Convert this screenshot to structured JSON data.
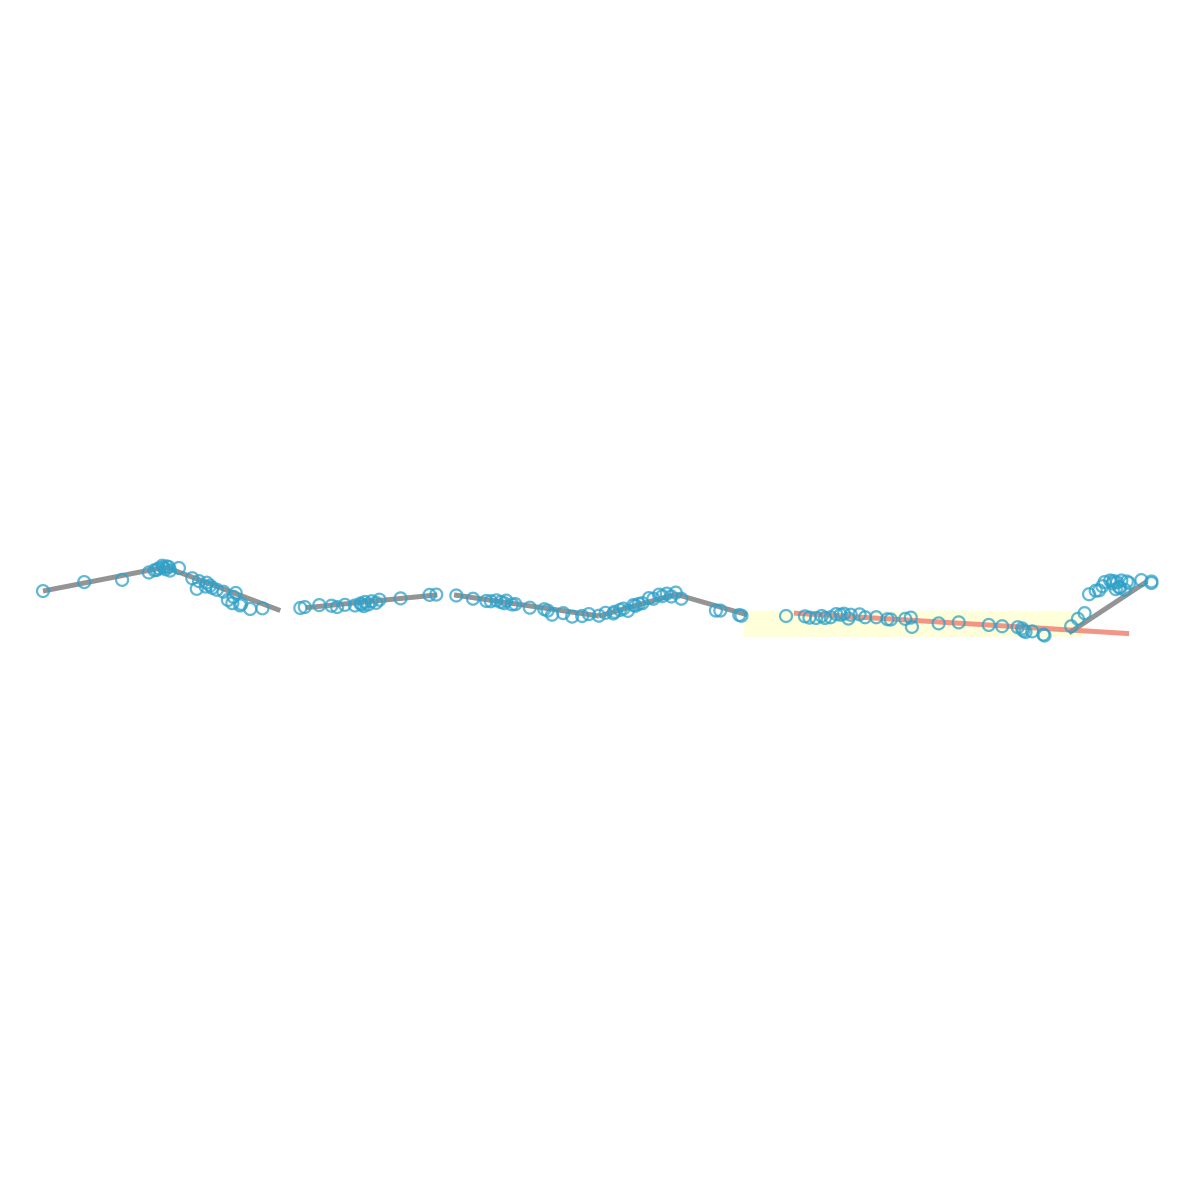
{
  "chart_data": {
    "type": "scatter",
    "title": "",
    "xlabel": "",
    "ylabel": "",
    "xlim": [
      0,
      100
    ],
    "ylim": [
      0,
      100
    ],
    "axes_visible": false,
    "grid": false,
    "legend": "none",
    "colors": {
      "points": "#2fa0c8",
      "fit_line": "#8e8e8e",
      "highlight_line": "#f08a7a",
      "highlight_region": "#ffffd0"
    },
    "highlight_region": {
      "x": [
        62.9,
        93.5
      ],
      "y": [
        38.5,
        46.6
      ]
    },
    "segments": [
      {
        "x": [
          0.0,
          11.0
        ],
        "y": [
          52.8,
          60.3
        ],
        "highlight": false
      },
      {
        "x": [
          11.0,
          21.3
        ],
        "y": [
          60.3,
          46.7
        ],
        "highlight": false
      },
      {
        "x": [
          23.6,
          35.4
        ],
        "y": [
          47.6,
          51.6
        ],
        "highlight": false
      },
      {
        "x": [
          36.9,
          49.9
        ],
        "y": [
          51.6,
          45.0
        ],
        "highlight": false
      },
      {
        "x": [
          49.9,
          56.8
        ],
        "y": [
          45.0,
          51.8
        ],
        "highlight": false
      },
      {
        "x": [
          56.8,
          63.2
        ],
        "y": [
          51.8,
          45.4
        ],
        "highlight": false
      },
      {
        "x": [
          67.4,
          97.5
        ],
        "y": [
          45.9,
          39.5
        ],
        "highlight": true
      },
      {
        "x": [
          92.1,
          99.1
        ],
        "y": [
          39.7,
          55.8
        ],
        "highlight": false
      }
    ],
    "points": [
      {
        "x": 0.0,
        "y": 52.8
      },
      {
        "x": 3.7,
        "y": 55.6
      },
      {
        "x": 7.1,
        "y": 56.3
      },
      {
        "x": 9.5,
        "y": 58.6
      },
      {
        "x": 10.0,
        "y": 59.3
      },
      {
        "x": 10.4,
        "y": 59.9
      },
      {
        "x": 10.8,
        "y": 60.2
      },
      {
        "x": 11.1,
        "y": 60.5
      },
      {
        "x": 11.3,
        "y": 60.3
      },
      {
        "x": 11.0,
        "y": 59.6
      },
      {
        "x": 11.4,
        "y": 59.2
      },
      {
        "x": 12.2,
        "y": 60.0
      },
      {
        "x": 10.7,
        "y": 60.7
      },
      {
        "x": 10.2,
        "y": 59.4
      },
      {
        "x": 13.4,
        "y": 56.8
      },
      {
        "x": 14.0,
        "y": 55.9
      },
      {
        "x": 14.7,
        "y": 55.4
      },
      {
        "x": 15.0,
        "y": 54.5
      },
      {
        "x": 14.6,
        "y": 54.2
      },
      {
        "x": 15.2,
        "y": 53.8
      },
      {
        "x": 13.8,
        "y": 53.5
      },
      {
        "x": 15.6,
        "y": 53.2
      },
      {
        "x": 16.2,
        "y": 52.6
      },
      {
        "x": 17.3,
        "y": 52.2
      },
      {
        "x": 17.1,
        "y": 51.0
      },
      {
        "x": 16.6,
        "y": 50.0
      },
      {
        "x": 17.0,
        "y": 49.0
      },
      {
        "x": 17.8,
        "y": 48.8
      },
      {
        "x": 18.6,
        "y": 47.2
      },
      {
        "x": 17.7,
        "y": 48.3
      },
      {
        "x": 19.7,
        "y": 47.4
      },
      {
        "x": 23.1,
        "y": 47.5
      },
      {
        "x": 23.5,
        "y": 47.8
      },
      {
        "x": 24.8,
        "y": 48.4
      },
      {
        "x": 25.9,
        "y": 48.2
      },
      {
        "x": 26.4,
        "y": 47.8
      },
      {
        "x": 27.1,
        "y": 48.5
      },
      {
        "x": 28.0,
        "y": 48.3
      },
      {
        "x": 28.6,
        "y": 48.6
      },
      {
        "x": 28.9,
        "y": 49.4
      },
      {
        "x": 29.5,
        "y": 49.6
      },
      {
        "x": 30.2,
        "y": 50.1
      },
      {
        "x": 29.9,
        "y": 49.1
      },
      {
        "x": 28.8,
        "y": 48.1
      },
      {
        "x": 28.5,
        "y": 48.9
      },
      {
        "x": 29.2,
        "y": 48.6
      },
      {
        "x": 32.1,
        "y": 50.5
      },
      {
        "x": 34.7,
        "y": 51.6
      },
      {
        "x": 35.3,
        "y": 51.7
      },
      {
        "x": 37.1,
        "y": 51.4
      },
      {
        "x": 38.6,
        "y": 50.4
      },
      {
        "x": 40.2,
        "y": 49.6
      },
      {
        "x": 40.7,
        "y": 49.9
      },
      {
        "x": 41.1,
        "y": 49.4
      },
      {
        "x": 41.6,
        "y": 49.8
      },
      {
        "x": 39.8,
        "y": 49.7
      },
      {
        "x": 42.1,
        "y": 48.6
      },
      {
        "x": 42.4,
        "y": 48.7
      },
      {
        "x": 41.4,
        "y": 49.0
      },
      {
        "x": 43.7,
        "y": 47.6
      },
      {
        "x": 45.0,
        "y": 47.1
      },
      {
        "x": 45.3,
        "y": 46.7
      },
      {
        "x": 45.7,
        "y": 45.4
      },
      {
        "x": 46.7,
        "y": 45.9
      },
      {
        "x": 47.5,
        "y": 44.8
      },
      {
        "x": 48.4,
        "y": 45.0
      },
      {
        "x": 49.0,
        "y": 45.6
      },
      {
        "x": 49.9,
        "y": 45.1
      },
      {
        "x": 50.5,
        "y": 46.0
      },
      {
        "x": 51.2,
        "y": 45.8
      },
      {
        "x": 51.3,
        "y": 46.3
      },
      {
        "x": 51.8,
        "y": 46.9
      },
      {
        "x": 52.1,
        "y": 47.3
      },
      {
        "x": 52.5,
        "y": 46.6
      },
      {
        "x": 53.0,
        "y": 48.4
      },
      {
        "x": 53.2,
        "y": 48.2
      },
      {
        "x": 53.5,
        "y": 48.8
      },
      {
        "x": 53.8,
        "y": 49.0
      },
      {
        "x": 54.4,
        "y": 50.6
      },
      {
        "x": 54.8,
        "y": 50.4
      },
      {
        "x": 55.3,
        "y": 51.7
      },
      {
        "x": 55.6,
        "y": 51.2
      },
      {
        "x": 56.0,
        "y": 52.0
      },
      {
        "x": 56.4,
        "y": 51.1
      },
      {
        "x": 56.8,
        "y": 52.3
      },
      {
        "x": 57.3,
        "y": 50.4
      },
      {
        "x": 60.4,
        "y": 46.7
      },
      {
        "x": 60.8,
        "y": 46.7
      },
      {
        "x": 62.5,
        "y": 45.3
      },
      {
        "x": 62.7,
        "y": 45.1
      },
      {
        "x": 66.7,
        "y": 45.0
      },
      {
        "x": 68.4,
        "y": 44.9
      },
      {
        "x": 68.8,
        "y": 44.5
      },
      {
        "x": 69.4,
        "y": 44.4
      },
      {
        "x": 69.9,
        "y": 45.0
      },
      {
        "x": 70.2,
        "y": 44.4
      },
      {
        "x": 70.7,
        "y": 44.6
      },
      {
        "x": 71.2,
        "y": 45.6
      },
      {
        "x": 71.6,
        "y": 45.4
      },
      {
        "x": 71.9,
        "y": 45.7
      },
      {
        "x": 72.3,
        "y": 44.2
      },
      {
        "x": 72.5,
        "y": 45.4
      },
      {
        "x": 73.3,
        "y": 45.5
      },
      {
        "x": 73.8,
        "y": 44.6
      },
      {
        "x": 74.8,
        "y": 44.6
      },
      {
        "x": 75.8,
        "y": 44.0
      },
      {
        "x": 76.1,
        "y": 43.9
      },
      {
        "x": 77.4,
        "y": 44.1
      },
      {
        "x": 77.9,
        "y": 44.5
      },
      {
        "x": 78.0,
        "y": 41.6
      },
      {
        "x": 80.4,
        "y": 42.7
      },
      {
        "x": 82.2,
        "y": 43.0
      },
      {
        "x": 84.9,
        "y": 42.2
      },
      {
        "x": 86.1,
        "y": 41.8
      },
      {
        "x": 87.5,
        "y": 41.5
      },
      {
        "x": 87.9,
        "y": 41.1
      },
      {
        "x": 88.0,
        "y": 40.4
      },
      {
        "x": 88.2,
        "y": 40.0
      },
      {
        "x": 88.8,
        "y": 40.2
      },
      {
        "x": 89.8,
        "y": 39.2
      },
      {
        "x": 89.9,
        "y": 38.9
      },
      {
        "x": 92.3,
        "y": 41.8
      },
      {
        "x": 92.9,
        "y": 44.1
      },
      {
        "x": 93.5,
        "y": 45.9
      },
      {
        "x": 93.9,
        "y": 51.8
      },
      {
        "x": 94.5,
        "y": 52.9
      },
      {
        "x": 94.8,
        "y": 53.0
      },
      {
        "x": 95.1,
        "y": 54.3
      },
      {
        "x": 95.3,
        "y": 55.6
      },
      {
        "x": 95.8,
        "y": 56.1
      },
      {
        "x": 96.1,
        "y": 55.9
      },
      {
        "x": 96.4,
        "y": 55.5
      },
      {
        "x": 96.0,
        "y": 55.2
      },
      {
        "x": 96.6,
        "y": 54.0
      },
      {
        "x": 96.7,
        "y": 53.8
      },
      {
        "x": 97.1,
        "y": 53.2
      },
      {
        "x": 96.3,
        "y": 53.4
      },
      {
        "x": 98.6,
        "y": 56.2
      },
      {
        "x": 99.5,
        "y": 55.3
      },
      {
        "x": 99.5,
        "y": 55.8
      },
      {
        "x": 97.3,
        "y": 55.8
      },
      {
        "x": 97.5,
        "y": 55.3
      },
      {
        "x": 96.8,
        "y": 56.1
      }
    ]
  }
}
